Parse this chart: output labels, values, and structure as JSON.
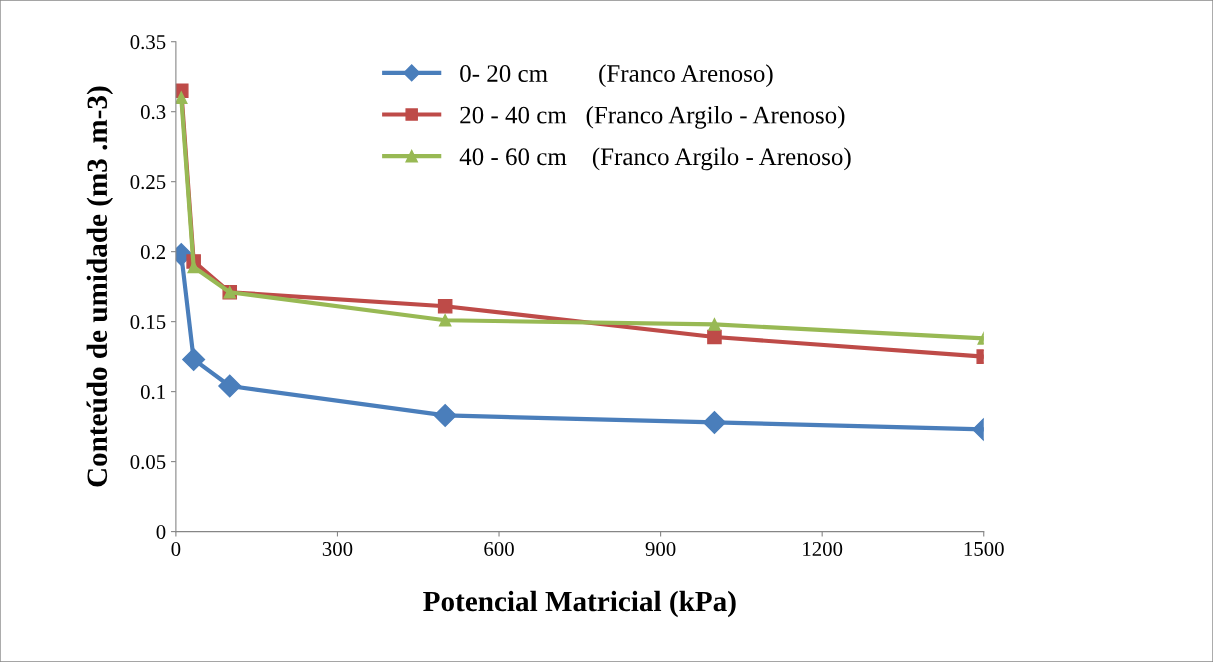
{
  "chart_data": {
    "type": "line",
    "xlabel": "Potencial Matricial (kPa)",
    "ylabel": "Conteúdo de umidade (m3 .m-3)",
    "x": [
      10,
      33,
      100,
      500,
      1000,
      1500
    ],
    "series": [
      {
        "name": "0- 20 cm        (Franco Arenoso)",
        "color": "#4a7ebb",
        "marker": "diamond",
        "values": [
          0.198,
          0.123,
          0.104,
          0.083,
          0.078,
          0.073
        ]
      },
      {
        "name": "20 - 40 cm   (Franco Argilo - Arenoso)",
        "color": "#be4b48",
        "marker": "square",
        "values": [
          0.315,
          0.193,
          0.171,
          0.161,
          0.139,
          0.125
        ]
      },
      {
        "name": "40 - 60 cm    (Franco Argilo - Arenoso)",
        "color": "#98b954",
        "marker": "triangle",
        "values": [
          0.31,
          0.189,
          0.171,
          0.151,
          0.148,
          0.138
        ]
      }
    ],
    "xlim": [
      0,
      1500
    ],
    "xticks": [
      0,
      300,
      600,
      900,
      1200,
      1500
    ],
    "ylim": [
      0,
      0.35
    ],
    "yticks": [
      0,
      0.05,
      0.1,
      0.15,
      0.2,
      0.25,
      0.3,
      0.35
    ],
    "grid": false,
    "legend": "top",
    "line_style": "solid"
  }
}
